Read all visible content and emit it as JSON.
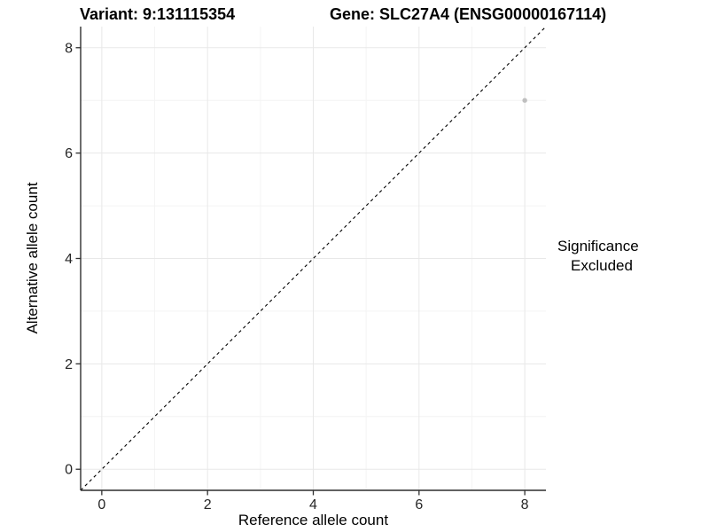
{
  "chart_data": {
    "type": "scatter",
    "title_left": "Variant: 9:131115354",
    "title_right": "Gene: SLC27A4 (ENSG00000167114)",
    "xlabel": "Reference allele count",
    "ylabel": "Alternative allele count",
    "xlim": [
      -0.4,
      8.4
    ],
    "ylim": [
      -0.4,
      8.4
    ],
    "x_major_ticks": [
      0,
      2,
      4,
      6,
      8
    ],
    "y_major_ticks": [
      0,
      2,
      4,
      6,
      8
    ],
    "x_minor_ticks": [
      1,
      3,
      5,
      7
    ],
    "y_minor_ticks": [
      1,
      3,
      5,
      7
    ],
    "x_tick_labels": [
      "0",
      "2",
      "4",
      "6",
      "8"
    ],
    "y_tick_labels": [
      "0",
      "2",
      "4",
      "6",
      "8"
    ],
    "grid": "major+minor",
    "legend_position": "right",
    "reference_line": {
      "type": "identity",
      "style": "dashed",
      "from": [
        -0.4,
        -0.4
      ],
      "to": [
        8.4,
        8.4
      ]
    },
    "series": [
      {
        "name": "Excluded",
        "points": [
          {
            "x": 8,
            "y": 7
          }
        ]
      }
    ],
    "legend": {
      "title": "Significance",
      "items": [
        {
          "label": "Excluded",
          "color": "#a9a9a9"
        }
      ]
    },
    "colors": {
      "background": "#ffffff",
      "grid_major": "#e8e8e8",
      "grid_minor": "#f4f4f4",
      "axis_line": "#2f2f2f",
      "tick_mark": "#2f2f2f",
      "tick_text": "#262626",
      "point": "#bfbfbf",
      "reference_line": "#000000",
      "text": "#000000"
    }
  }
}
